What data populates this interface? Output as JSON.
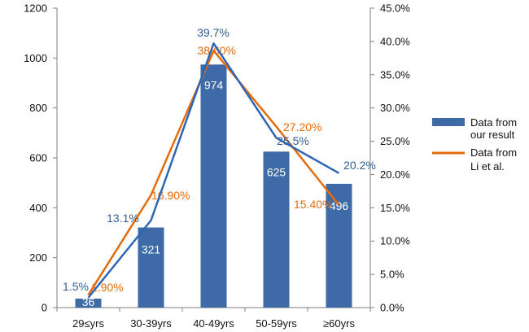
{
  "chart_data": {
    "type": "bar",
    "categories": [
      "29≤yrs",
      "30-39yrs",
      "40-49yrs",
      "50-59yrs",
      "≥60yrs"
    ],
    "left_axis": {
      "ylim": [
        0,
        1200
      ],
      "ticks": [
        "0",
        "200",
        "400",
        "600",
        "800",
        "1000",
        "1200"
      ]
    },
    "right_axis": {
      "ylim": [
        0,
        45
      ],
      "ticks": [
        "0.0%",
        "5.0%",
        "10.0%",
        "15.0%",
        "20.0%",
        "25.0%",
        "30.0%",
        "35.0%",
        "40.0%",
        "45.0%"
      ]
    },
    "series": [
      {
        "name": "Data from our result",
        "kind": "bar",
        "axis": "left",
        "values": [
          36,
          321,
          974,
          625,
          496
        ],
        "labels": [
          "36",
          "321",
          "974",
          "625",
          "496"
        ],
        "color": "#3f6aa8"
      },
      {
        "name": "Data from our result",
        "kind": "line",
        "axis": "right",
        "values": [
          1.5,
          13.1,
          39.7,
          25.5,
          20.2
        ],
        "labels": [
          "1.5%",
          "13.1%",
          "39.7%",
          "25.5%",
          "20.2%"
        ],
        "color": "#2f66b3"
      },
      {
        "name": "Data from Li et al.",
        "kind": "line",
        "axis": "right",
        "values": [
          1.9,
          16.9,
          38.6,
          27.2,
          15.4
        ],
        "labels": [
          "1.90%",
          "16.90%",
          "38.60%",
          "27.20%",
          "15.40%"
        ],
        "color": "#e46c0a"
      }
    ],
    "legend": {
      "placement": "right",
      "entries": [
        {
          "line1": "Data from",
          "line2": "our result",
          "swatch": "bar",
          "color": "#3f6aa8"
        },
        {
          "line1": "Data from",
          "line2": "Li et al.",
          "swatch": "line",
          "color": "#e46c0a"
        }
      ]
    }
  }
}
